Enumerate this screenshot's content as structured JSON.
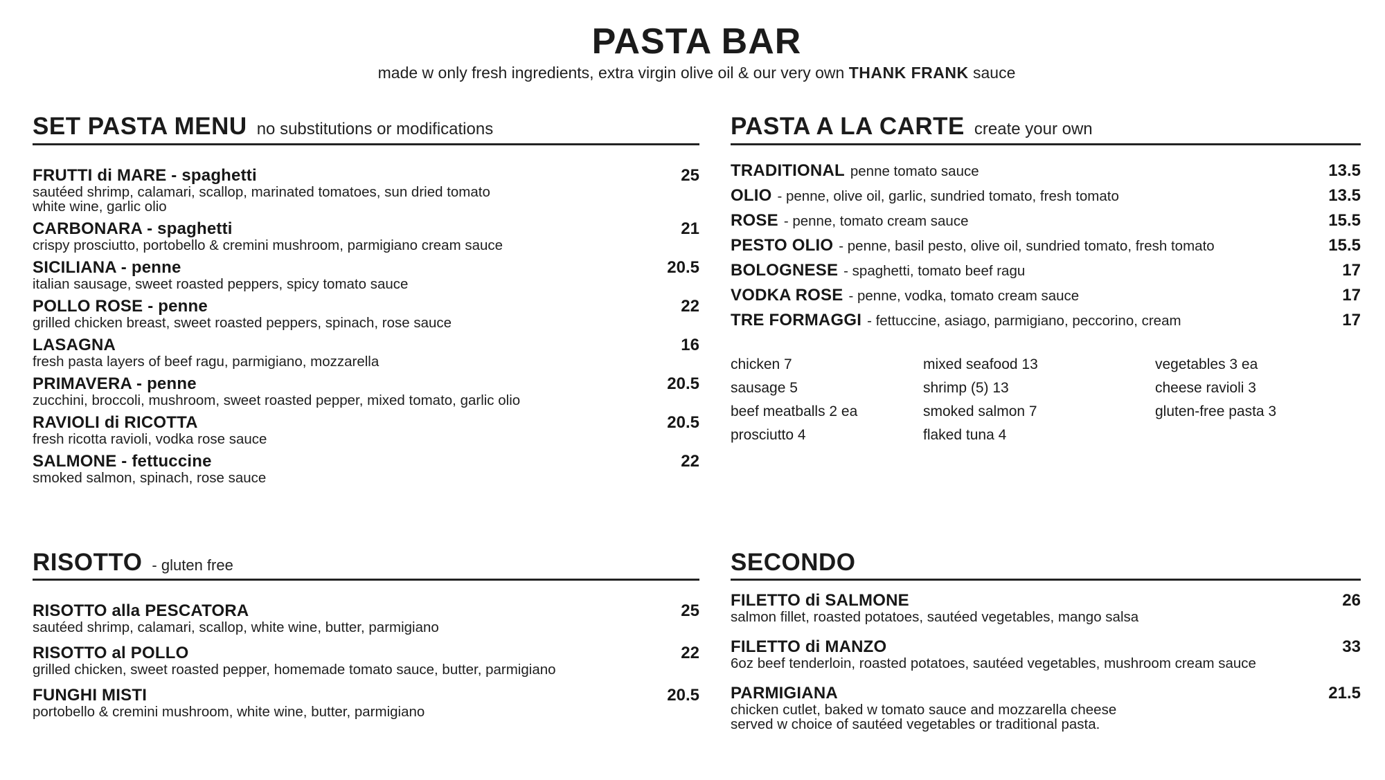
{
  "header": {
    "title": "PASTA BAR",
    "subtitle_prefix": "made w only fresh ingredients, extra virgin olive oil & our very own ",
    "subtitle_brand": "THANK FRANK",
    "subtitle_suffix": " sauce"
  },
  "set_pasta": {
    "heading": "SET PASTA MENU",
    "note": "no substitutions or modifications",
    "items": [
      {
        "name": "FRUTTI di MARE - spaghetti",
        "price": "25",
        "desc": "sautéed shrimp, calamari, scallop, marinated tomatoes, sun dried tomato\nwhite wine, garlic olio"
      },
      {
        "name": "CARBONARA - spaghetti",
        "price": "21",
        "desc": "crispy prosciutto, portobello & cremini mushroom, parmigiano cream sauce"
      },
      {
        "name": "SICILIANA - penne",
        "price": "20.5",
        "desc": "italian sausage, sweet roasted peppers, spicy tomato sauce"
      },
      {
        "name": "POLLO ROSE - penne",
        "price": "22",
        "desc": "grilled chicken breast, sweet roasted peppers, spinach, rose sauce"
      },
      {
        "name": "LASAGNA",
        "price": "16",
        "desc": "fresh pasta layers of beef ragu, parmigiano, mozzarella"
      },
      {
        "name": "PRIMAVERA - penne",
        "price": "20.5",
        "desc": "zucchini, broccoli, mushroom, sweet roasted pepper, mixed tomato, garlic olio"
      },
      {
        "name": "RAVIOLI di RICOTTA",
        "price": "20.5",
        "desc": "fresh ricotta ravioli, vodka rose sauce"
      },
      {
        "name": "SALMONE - fettuccine",
        "price": "22",
        "desc": "smoked salmon, spinach, rose sauce"
      }
    ]
  },
  "risotto": {
    "heading": "RISOTTO",
    "note": "- gluten free",
    "items": [
      {
        "name": "RISOTTO alla PESCATORA",
        "price": "25",
        "desc": "sautéed shrimp, calamari, scallop, white wine, butter, parmigiano"
      },
      {
        "name": "RISOTTO al POLLO",
        "price": "22",
        "desc": "grilled chicken, sweet roasted pepper, homemade tomato sauce, butter, parmigiano"
      },
      {
        "name": "FUNGHI MISTI",
        "price": "20.5",
        "desc": "portobello & cremini mushroom, white wine, butter, parmigiano"
      }
    ]
  },
  "a_la_carte": {
    "heading": "PASTA A LA CARTE",
    "note": "create your own",
    "items": [
      {
        "name": "TRADITIONAL",
        "desc": "penne tomato sauce",
        "price": "13.5"
      },
      {
        "name": "OLIO",
        "desc": "- penne, olive oil, garlic, sundried tomato, fresh tomato",
        "price": "13.5"
      },
      {
        "name": "ROSE",
        "desc": "- penne, tomato cream sauce",
        "price": "15.5"
      },
      {
        "name": "PESTO OLIO",
        "desc": "- penne, basil pesto, olive oil, sundried tomato, fresh tomato",
        "price": "15.5"
      },
      {
        "name": "BOLOGNESE",
        "desc": "- spaghetti, tomato beef ragu",
        "price": "17"
      },
      {
        "name": "VODKA ROSE",
        "desc": "- penne, vodka, tomato cream sauce",
        "price": "17"
      },
      {
        "name": "TRE FORMAGGI",
        "desc": "- fettuccine, asiago, parmigiano, peccorino, cream",
        "price": "17"
      }
    ],
    "addons": {
      "col1": [
        "chicken 7",
        "sausage 5",
        "beef meatballs 2 ea",
        "prosciutto 4"
      ],
      "col2": [
        "mixed seafood 13",
        "shrimp (5) 13",
        "smoked salmon 7",
        "flaked tuna 4"
      ],
      "col3": [
        "vegetables 3 ea",
        "cheese ravioli 3",
        "gluten-free pasta 3"
      ]
    }
  },
  "secondo": {
    "heading": "SECONDO",
    "items": [
      {
        "name": "FILETTO di SALMONE",
        "price": "26",
        "desc": "salmon fillet, roasted potatoes, sautéed vegetables, mango salsa"
      },
      {
        "name": "FILETTO di MANZO",
        "price": "33",
        "desc": "6oz beef tenderloin, roasted potatoes, sautéed vegetables, mushroom cream sauce"
      },
      {
        "name": "PARMIGIANA",
        "price": "21.5",
        "desc": "chicken cutlet, baked w tomato sauce and mozzarella cheese\nserved w choice of sautéed vegetables or traditional pasta."
      }
    ]
  }
}
